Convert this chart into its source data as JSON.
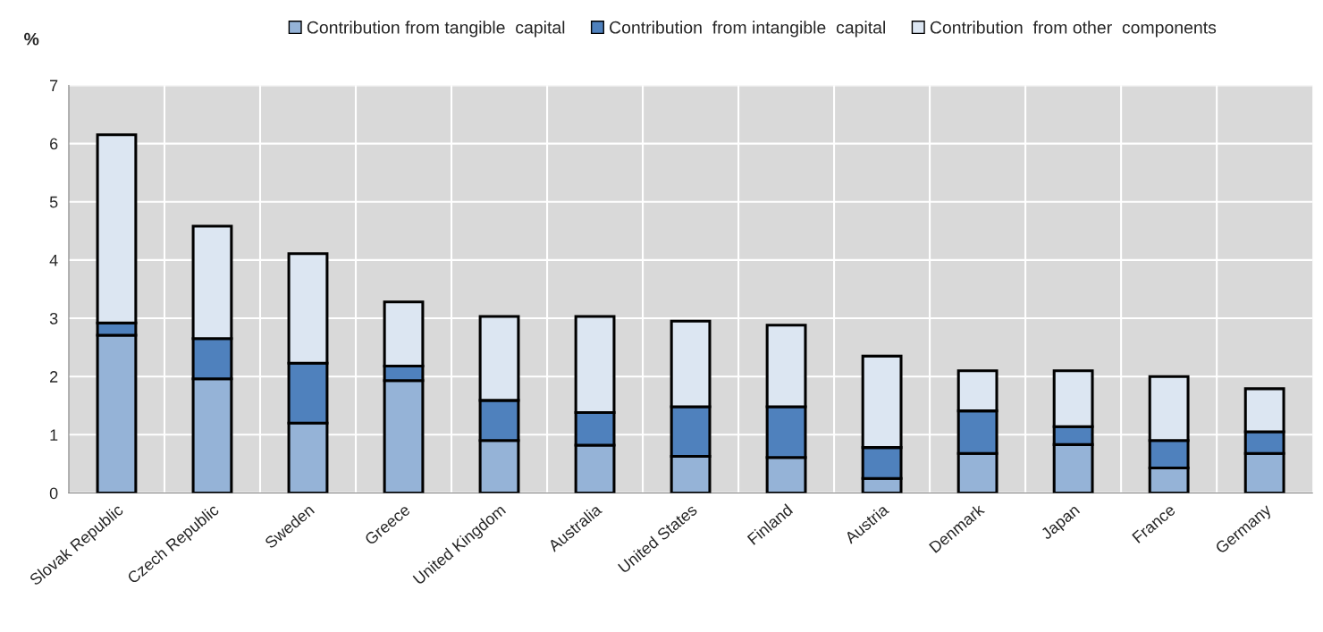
{
  "chart_data": {
    "type": "bar",
    "stacked": true,
    "ylabel": "%",
    "categories": [
      "Slovak Republic",
      "Czech Republic",
      "Sweden",
      "Greece",
      "United Kingdom",
      "Australia",
      "United States",
      "Finland",
      "Austria",
      "Denmark",
      "Japan",
      "France",
      "Germany"
    ],
    "series": [
      {
        "name": "Contribution from tangible  capital",
        "color": "#95b3d7",
        "values": [
          2.71,
          1.96,
          1.2,
          1.93,
          0.9,
          0.82,
          0.63,
          0.61,
          0.25,
          0.68,
          0.83,
          0.43,
          0.68
        ]
      },
      {
        "name": "Contribution  from intangible  capital",
        "color": "#4f81bd",
        "values": [
          0.21,
          0.69,
          1.03,
          0.25,
          0.69,
          0.56,
          0.85,
          0.87,
          0.53,
          0.73,
          0.31,
          0.47,
          0.37
        ]
      },
      {
        "name": "Contribution  from other  components",
        "color": "#dce6f2",
        "values": [
          3.23,
          1.93,
          1.88,
          1.1,
          1.44,
          1.65,
          1.47,
          1.4,
          1.57,
          0.69,
          0.96,
          1.1,
          0.74
        ]
      }
    ],
    "ylim": [
      0,
      7
    ],
    "yticks": [
      0,
      1,
      2,
      3,
      4,
      5,
      6,
      7
    ],
    "grid": true,
    "legend": "top"
  }
}
